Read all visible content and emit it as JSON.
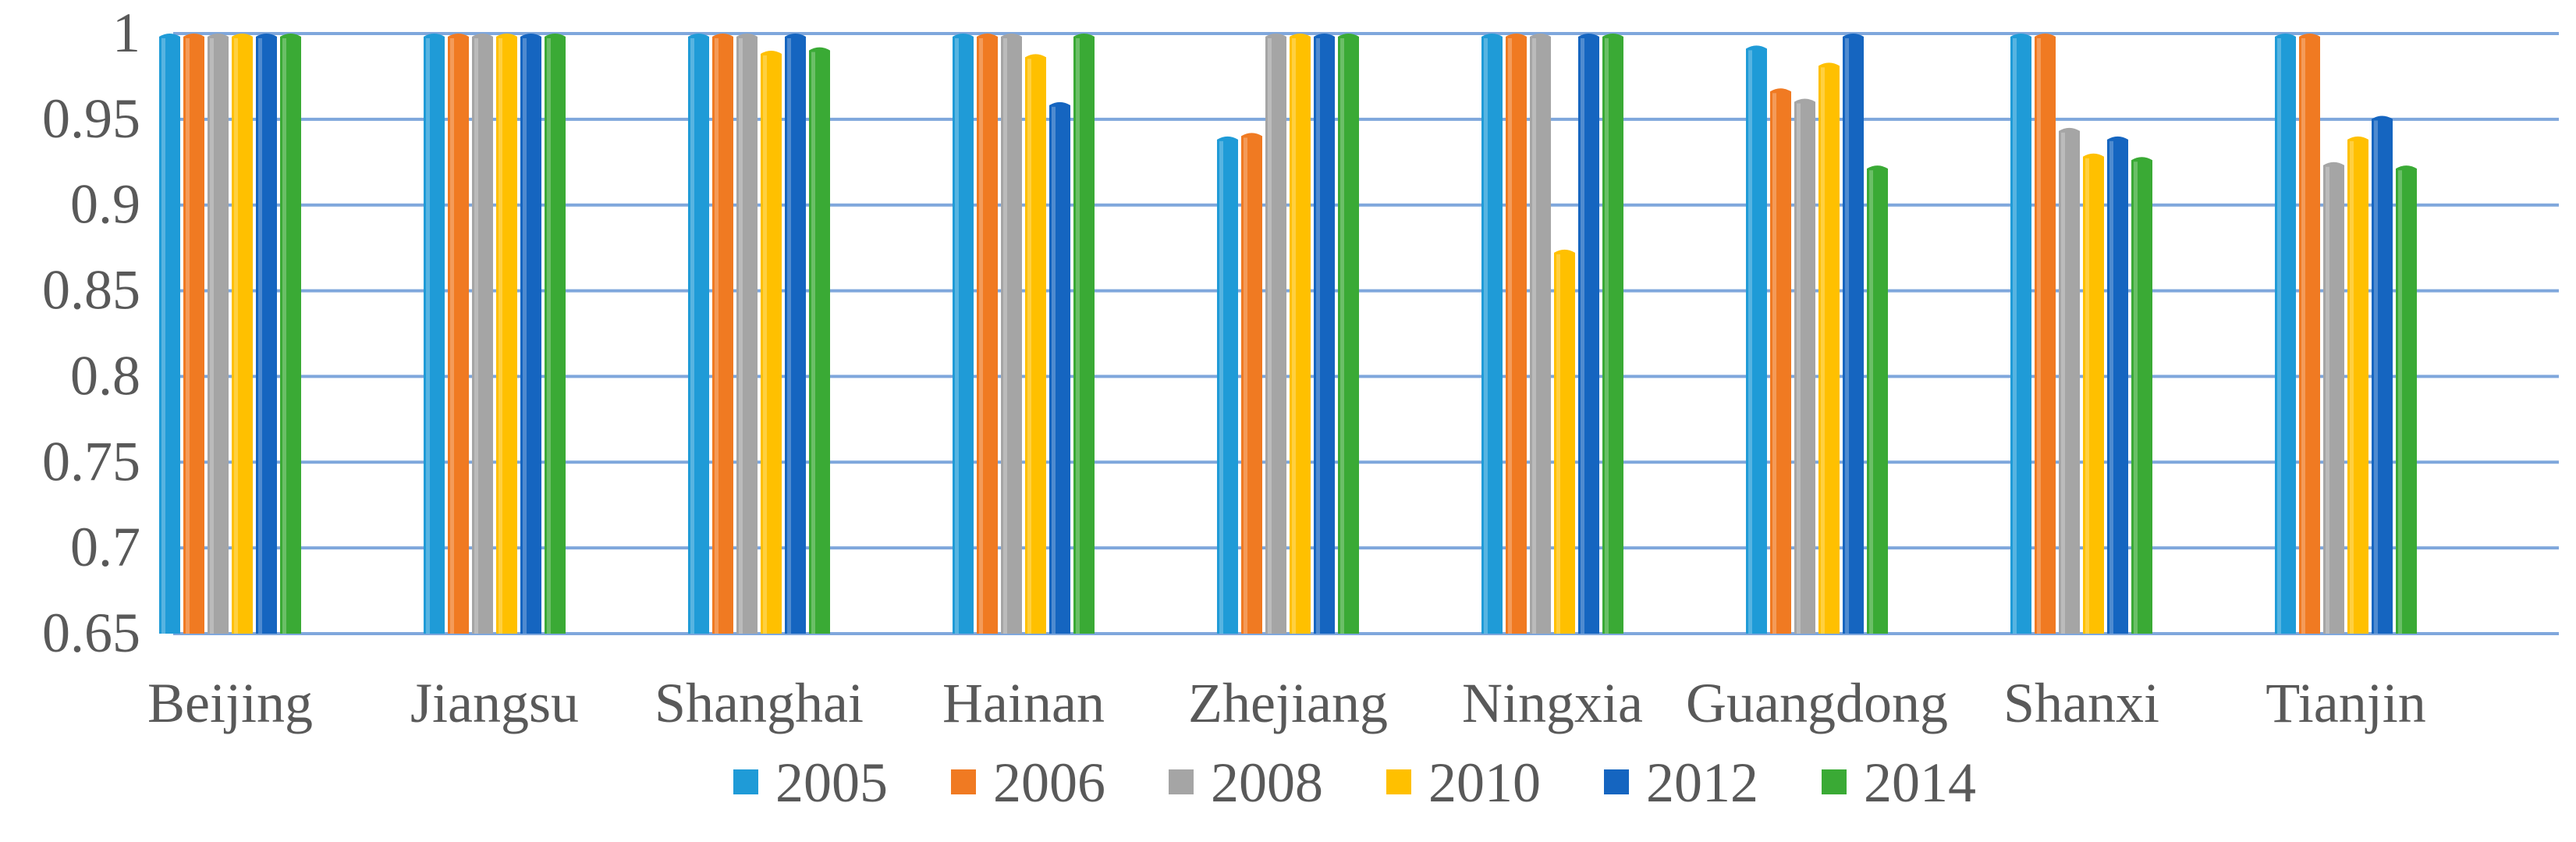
{
  "chart_data": {
    "type": "bar",
    "title": "",
    "xlabel": "",
    "ylabel": "",
    "ylim": [
      0.65,
      1
    ],
    "yticks": [
      "0.65",
      "0.7",
      "0.75",
      "0.8",
      "0.85",
      "0.9",
      "0.95",
      "1"
    ],
    "grid": true,
    "legend_position": "bottom",
    "categories": [
      "Beijing",
      "Jiangsu",
      "Shanghai",
      "Hainan",
      "Zhejiang",
      "Ningxia",
      "Guangdong",
      "Shanxi",
      "Tianjin"
    ],
    "series": [
      {
        "name": "2005",
        "color": "#1F9BD7",
        "values": [
          1,
          1,
          1,
          1,
          0.94,
          1,
          0.993,
          1,
          1
        ]
      },
      {
        "name": "2006",
        "color": "#F07A22",
        "values": [
          1,
          1,
          1,
          1,
          0.942,
          1,
          0.968,
          1,
          1
        ]
      },
      {
        "name": "2008",
        "color": "#A5A5A5",
        "values": [
          1,
          1,
          1,
          1,
          1,
          1,
          0.962,
          0.945,
          0.925
        ]
      },
      {
        "name": "2010",
        "color": "#FFC000",
        "values": [
          1,
          1,
          0.99,
          0.988,
          1,
          0.874,
          0.983,
          0.93,
          0.94
        ]
      },
      {
        "name": "2012",
        "color": "#1565C0",
        "values": [
          1,
          1,
          1,
          0.96,
          1,
          1,
          1,
          0.94,
          0.952
        ]
      },
      {
        "name": "2014",
        "color": "#3AAA35",
        "values": [
          1,
          1,
          0.992,
          1,
          1,
          1,
          0.923,
          0.928,
          0.923
        ]
      }
    ]
  }
}
